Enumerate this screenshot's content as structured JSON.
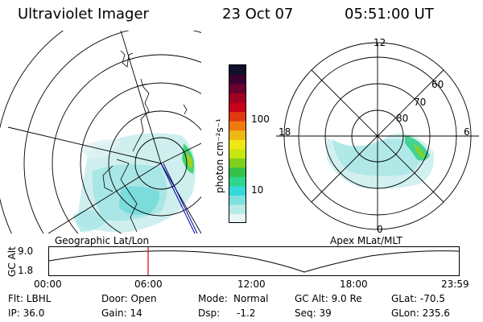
{
  "header": {
    "title": "Ultraviolet Imager",
    "date": "23 Oct 07",
    "time": "05:51:00 UT"
  },
  "left_panel": {
    "label": "Geographic Lat/Lon"
  },
  "colorbar": {
    "unit_label": "photon cm⁻²s⁻¹",
    "ticks": [
      "100",
      "10"
    ],
    "colors": [
      "#e8f5f5",
      "#b9eaea",
      "#7fe0e0",
      "#34d9d9",
      "#2ed58a",
      "#34c24a",
      "#7fce1e",
      "#c8e610",
      "#f0e814",
      "#f0b814",
      "#f07a10",
      "#e03a10",
      "#c8001a",
      "#a00024",
      "#6b0030",
      "#3a0030",
      "#10102a"
    ]
  },
  "right_panel": {
    "label": "Apex MLat/MLT",
    "mlt_labels": {
      "top": "12",
      "left": "18",
      "right": "6",
      "bottom": "0"
    },
    "lat_labels": [
      "80",
      "70",
      "60"
    ]
  },
  "altitude_plot": {
    "ylabel": "GC Alt",
    "yticks": [
      "9.0",
      "1.8"
    ],
    "xticks": [
      "00:00",
      "06:00",
      "12:00",
      "18:00",
      "23:59"
    ]
  },
  "footer": {
    "row1": {
      "flt": "Flt: LBHL",
      "door": "Door: Open",
      "mode_label": "Mode:",
      "mode_value": "Normal",
      "gc_alt": "GC Alt: 9.0 Re",
      "glat": "GLat: -70.5"
    },
    "row2": {
      "ip": "IP: 36.0",
      "gain": "Gain: 14",
      "dsp_label": "Dsp:",
      "dsp_value": "-1.2",
      "seq": "Seq: 39",
      "glon": "GLon: 235.6"
    }
  }
}
